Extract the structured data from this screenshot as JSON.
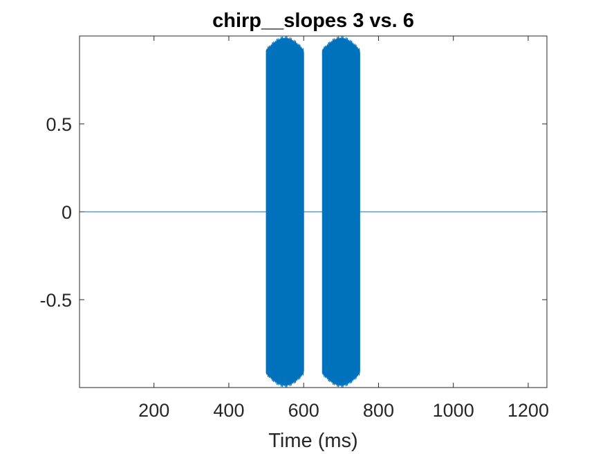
{
  "chart_data": {
    "type": "line",
    "title": "chirp__slopes 3 vs. 6",
    "xlabel": "Time (ms)",
    "ylabel": "",
    "xlim": [
      1,
      1250
    ],
    "ylim": [
      -1,
      1
    ],
    "xticks": [
      200,
      400,
      600,
      800,
      1000,
      1200
    ],
    "xtick_labels": [
      "200",
      "400",
      "600",
      "800",
      "1000",
      "1200"
    ],
    "yticks": [
      -0.5,
      0,
      0.5
    ],
    "ytick_labels": [
      "-0.5",
      "0",
      "0.5"
    ],
    "grid": false,
    "line_color": "#0072BD",
    "series": [
      {
        "segments": [
          {
            "x": [
              1,
              500
            ],
            "amplitude": 0
          },
          {
            "x": [
              500,
              600
            ],
            "amplitude": 1
          },
          {
            "x": [
              600,
              650
            ],
            "amplitude": 0
          },
          {
            "x": [
              650,
              750
            ],
            "amplitude": 1
          },
          {
            "x": [
              750,
              1250
            ],
            "amplitude": 0
          }
        ]
      }
    ]
  }
}
